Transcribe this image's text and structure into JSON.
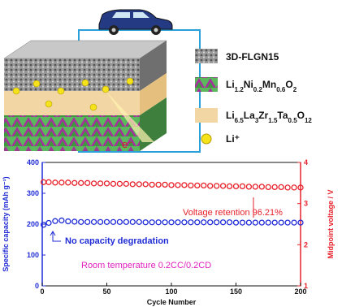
{
  "schematic": {
    "electron_label": "e⁻",
    "legend": [
      {
        "label": "3D-FLGN15"
      },
      {
        "label_parts": [
          "Li",
          "1.2",
          "Ni",
          "0.2",
          "Mn",
          "0.6",
          "O",
          "2"
        ]
      },
      {
        "label_parts": [
          "Li",
          "6.5",
          "La",
          "3",
          "Zr",
          "1.5",
          "Ta",
          "0.5",
          "O",
          "12"
        ]
      },
      {
        "label": "Li⁺"
      }
    ]
  },
  "chart_data": {
    "type": "scatter",
    "xlabel": "Cycle Number",
    "ylabel": "Specific capacity (mAh g⁻¹)",
    "y2label": "Midpoint voltage / V",
    "annotations": [
      "Voltage retention 96.21%",
      "No capacity degradation",
      "Room temperature   0.2CC/0.2CD"
    ],
    "x": [
      1,
      5,
      10,
      15,
      20,
      25,
      30,
      35,
      40,
      45,
      50,
      55,
      60,
      65,
      70,
      75,
      80,
      85,
      90,
      95,
      100,
      105,
      110,
      115,
      120,
      125,
      130,
      135,
      140,
      145,
      150,
      155,
      160,
      165,
      170,
      175,
      180,
      185,
      190,
      195,
      200
    ],
    "series": [
      {
        "color": "#1f2bd6",
        "values": [
          198,
          204,
          210,
          212,
          209,
          208,
          207,
          207,
          207,
          207,
          207,
          207,
          207,
          207,
          207,
          207,
          206,
          206,
          206,
          206,
          206,
          206,
          206,
          206,
          206,
          206,
          206,
          206,
          206,
          206,
          205,
          205,
          205,
          205,
          205,
          205,
          205,
          205,
          205,
          205,
          205
        ]
      },
      {
        "color": "#e8202a",
        "axis": "y2",
        "values": [
          3.52,
          3.52,
          3.51,
          3.51,
          3.51,
          3.5,
          3.5,
          3.5,
          3.49,
          3.49,
          3.49,
          3.48,
          3.48,
          3.48,
          3.47,
          3.47,
          3.47,
          3.46,
          3.46,
          3.46,
          3.45,
          3.45,
          3.45,
          3.44,
          3.44,
          3.44,
          3.43,
          3.43,
          3.43,
          3.42,
          3.42,
          3.42,
          3.41,
          3.41,
          3.41,
          3.4,
          3.4,
          3.4,
          3.39,
          3.39,
          3.39
        ]
      }
    ],
    "xlim": [
      0,
      200
    ],
    "xticks": [
      0,
      50,
      100,
      150,
      200
    ],
    "ylim": [
      0,
      400
    ],
    "yticks": [
      0,
      100,
      200,
      300,
      400
    ],
    "y2lim": [
      1,
      4
    ],
    "y2ticks": [
      1,
      2,
      3,
      4
    ]
  }
}
